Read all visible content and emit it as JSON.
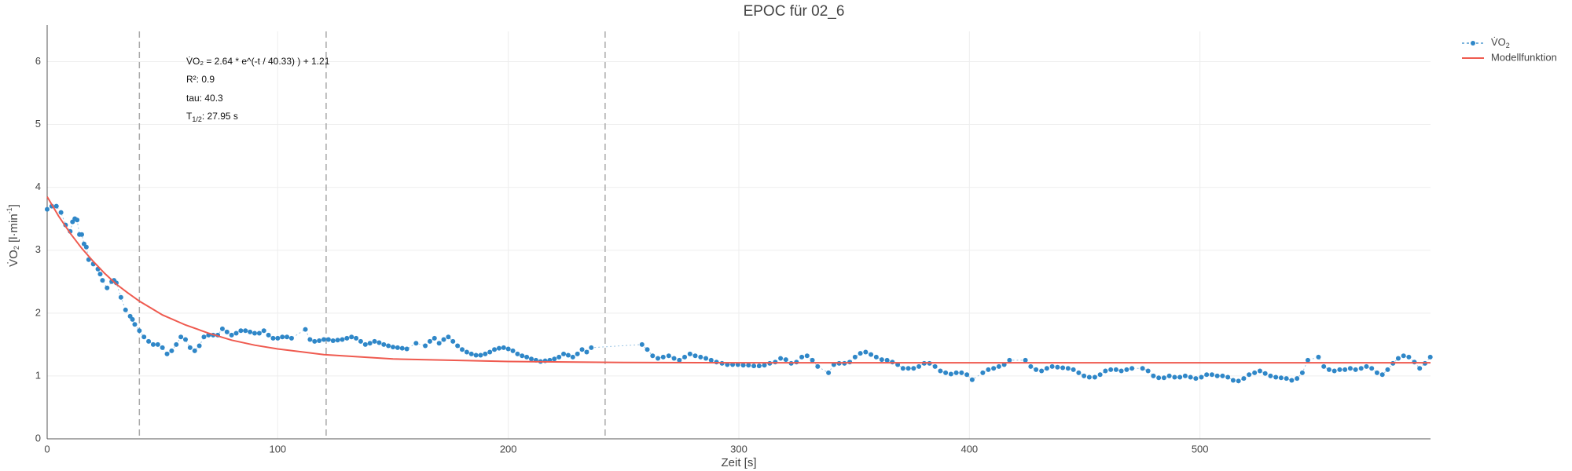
{
  "chart_data": {
    "type": "scatter",
    "title": "EPOC für 02_6",
    "xlabel": "Zeit [s]",
    "ylabel": [
      "V̇O",
      "2",
      " [l·min",
      "-1",
      "]"
    ],
    "xlim": [
      0,
      600
    ],
    "ylim": [
      0,
      6.48
    ],
    "xticks": [
      0,
      100,
      200,
      300,
      400,
      500
    ],
    "yticks": [
      0,
      1,
      2,
      3,
      4,
      5,
      6
    ],
    "grid": true,
    "legend": "top-right",
    "vlines": [
      40,
      121,
      242
    ],
    "annotations": [
      [
        "V̇O₂ = 2.64 * e^(-t / 40.33) ) + 1.21"
      ],
      [
        "R²: 0.9"
      ],
      [
        "tau: 40.3"
      ],
      [
        "T",
        "1/2",
        ": 27.95 s"
      ]
    ],
    "series": [
      {
        "name": [
          "V̇O",
          "2"
        ],
        "color": "#2f87c8",
        "mode": "markers+lines",
        "x": [
          0,
          2,
          4,
          6,
          8,
          10,
          11,
          12,
          13,
          14,
          15,
          16,
          17,
          18,
          20,
          22,
          23,
          24,
          26,
          28,
          29,
          30,
          32,
          34,
          36,
          37,
          38,
          40,
          42,
          44,
          46,
          48,
          50,
          52,
          54,
          56,
          58,
          60,
          62,
          64,
          66,
          68,
          70,
          72,
          74,
          76,
          78,
          80,
          82,
          84,
          86,
          88,
          90,
          92,
          94,
          96,
          98,
          100,
          102,
          104,
          106,
          112,
          114,
          116,
          118,
          120,
          122,
          124,
          126,
          128,
          130,
          132,
          134,
          136,
          138,
          140,
          142,
          144,
          146,
          148,
          150,
          152,
          154,
          156,
          160,
          164,
          166,
          168,
          170,
          172,
          174,
          176,
          178,
          180,
          182,
          184,
          186,
          188,
          190,
          192,
          194,
          196,
          198,
          200,
          202,
          204,
          206,
          208,
          210,
          212,
          214,
          216,
          218,
          220,
          222,
          224,
          226,
          228,
          230,
          232,
          234,
          236,
          258.0,
          260.3,
          262.6,
          264.9,
          267.2,
          269.6,
          271.9,
          274.2,
          276.5,
          278.8,
          281.1,
          283.4,
          285.7,
          288.0,
          290.3,
          292.7,
          295.0,
          297.3,
          299.6,
          301.9,
          304.2,
          306.5,
          308.8,
          311.1,
          313.4,
          315.8,
          318.1,
          320.4,
          322.7,
          325.0,
          327.3,
          329.6,
          331.9,
          334.2,
          338.9,
          341.2,
          343.5,
          345.8,
          348.1,
          350.4,
          352.7,
          355.0,
          357.3,
          359.6,
          362.0,
          364.3,
          366.6,
          368.9,
          371.2,
          373.5,
          375.8,
          378.1,
          380.4,
          382.7,
          385.1,
          387.4,
          389.7,
          392.0,
          394.3,
          396.6,
          398.9,
          401.2,
          405.8,
          408.2,
          410.5,
          412.8,
          415.1,
          417.4,
          424.3,
          426.6,
          428.9,
          431.3,
          433.6,
          435.9,
          438.2,
          440.5,
          442.8,
          445.1,
          447.4,
          449.7,
          452.0,
          454.4,
          456.7,
          459.0,
          461.3,
          463.6,
          465.9,
          468.2,
          470.5,
          475.1,
          477.5,
          479.8,
          482.1,
          484.4,
          486.7,
          489.0,
          491.3,
          493.6,
          495.9,
          498.2,
          500.6,
          502.9,
          505.2,
          507.5,
          509.8,
          512.1,
          514.4,
          516.7,
          519.0,
          521.3,
          523.7,
          526.0,
          528.3,
          530.6,
          532.9,
          535.2,
          537.5,
          539.8,
          542.1,
          544.4,
          546.8,
          551.4,
          553.7,
          556.0,
          558.3,
          560.6,
          562.9,
          565.2,
          567.5,
          569.9,
          572.2,
          574.5,
          576.8,
          579.1,
          581.4,
          583.7,
          586.0,
          588.3,
          590.6,
          593.0,
          595.3,
          597.6,
          599.9
        ],
        "values": [
          3.65,
          3.7,
          3.7,
          3.6,
          3.4,
          3.3,
          3.45,
          3.5,
          3.48,
          3.25,
          3.25,
          3.1,
          3.05,
          2.85,
          2.78,
          2.7,
          2.62,
          2.52,
          2.4,
          2.5,
          2.52,
          2.48,
          2.25,
          2.05,
          1.95,
          1.9,
          1.82,
          1.72,
          1.62,
          1.55,
          1.5,
          1.5,
          1.45,
          1.35,
          1.4,
          1.5,
          1.62,
          1.58,
          1.45,
          1.4,
          1.48,
          1.62,
          1.65,
          1.65,
          1.65,
          1.75,
          1.7,
          1.65,
          1.68,
          1.72,
          1.72,
          1.7,
          1.68,
          1.68,
          1.72,
          1.65,
          1.6,
          1.6,
          1.62,
          1.62,
          1.6,
          1.74,
          1.58,
          1.55,
          1.56,
          1.58,
          1.58,
          1.56,
          1.57,
          1.58,
          1.6,
          1.62,
          1.6,
          1.55,
          1.5,
          1.52,
          1.55,
          1.53,
          1.5,
          1.48,
          1.46,
          1.45,
          1.44,
          1.43,
          1.52,
          1.48,
          1.55,
          1.6,
          1.52,
          1.58,
          1.62,
          1.55,
          1.48,
          1.42,
          1.38,
          1.35,
          1.33,
          1.33,
          1.35,
          1.38,
          1.42,
          1.44,
          1.45,
          1.43,
          1.4,
          1.35,
          1.32,
          1.3,
          1.27,
          1.25,
          1.23,
          1.24,
          1.25,
          1.27,
          1.3,
          1.35,
          1.33,
          1.3,
          1.35,
          1.42,
          1.38,
          1.45,
          1.5,
          1.42,
          1.32,
          1.28,
          1.3,
          1.32,
          1.28,
          1.25,
          1.3,
          1.35,
          1.32,
          1.3,
          1.28,
          1.25,
          1.22,
          1.2,
          1.18,
          1.18,
          1.18,
          1.17,
          1.17,
          1.16,
          1.16,
          1.17,
          1.2,
          1.22,
          1.28,
          1.26,
          1.2,
          1.22,
          1.3,
          1.32,
          1.25,
          1.15,
          1.05,
          1.18,
          1.2,
          1.2,
          1.22,
          1.3,
          1.36,
          1.38,
          1.34,
          1.3,
          1.26,
          1.25,
          1.22,
          1.18,
          1.12,
          1.12,
          1.12,
          1.15,
          1.2,
          1.2,
          1.15,
          1.08,
          1.05,
          1.03,
          1.05,
          1.05,
          1.02,
          0.94,
          1.05,
          1.1,
          1.12,
          1.15,
          1.18,
          1.25,
          1.25,
          1.15,
          1.1,
          1.08,
          1.12,
          1.15,
          1.14,
          1.13,
          1.12,
          1.1,
          1.05,
          1.0,
          0.98,
          0.98,
          1.02,
          1.08,
          1.1,
          1.1,
          1.08,
          1.1,
          1.12,
          1.12,
          1.08,
          1.0,
          0.97,
          0.97,
          1.0,
          0.98,
          0.98,
          1.0,
          0.98,
          0.96,
          0.98,
          1.02,
          1.02,
          1.0,
          1.0,
          0.98,
          0.93,
          0.92,
          0.96,
          1.02,
          1.05,
          1.08,
          1.04,
          1.0,
          0.98,
          0.97,
          0.96,
          0.93,
          0.96,
          1.05,
          1.25,
          1.3,
          1.15,
          1.1,
          1.08,
          1.1,
          1.1,
          1.12,
          1.1,
          1.12,
          1.15,
          1.12,
          1.05,
          1.02,
          1.1,
          1.2,
          1.28,
          1.32,
          1.3,
          1.22,
          1.12,
          1.2,
          1.3
        ]
      },
      {
        "name": [
          "Modellfunktion"
        ],
        "color": "#ef5a4f",
        "mode": "lines",
        "x": [
          0,
          5,
          10,
          15,
          20,
          25,
          30,
          35,
          40,
          45,
          50,
          60,
          70,
          80,
          90,
          100,
          120,
          150,
          200,
          250,
          300,
          600
        ],
        "values": [
          3.85,
          3.54,
          3.27,
          3.03,
          2.82,
          2.63,
          2.46,
          2.32,
          2.19,
          2.08,
          1.97,
          1.81,
          1.68,
          1.57,
          1.49,
          1.43,
          1.34,
          1.27,
          1.23,
          1.215,
          1.21,
          1.21
        ]
      }
    ]
  }
}
